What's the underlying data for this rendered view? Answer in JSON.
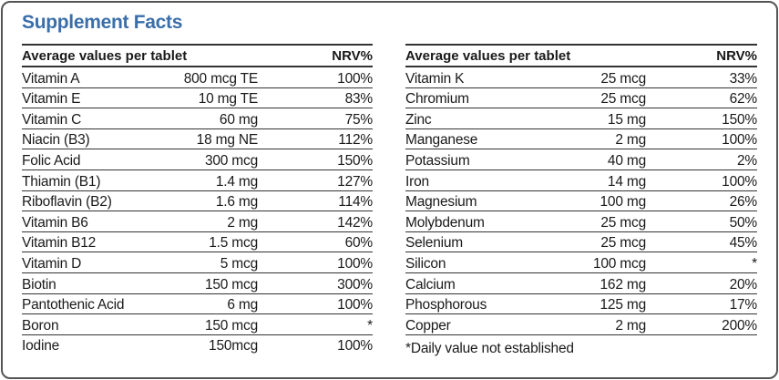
{
  "title": "Supplement Facts",
  "left": {
    "header_label": "Average values per tablet",
    "header_nrv": "NRV%",
    "rows": [
      {
        "name": "Vitamin A",
        "amount": "800 mcg TE",
        "nrv": "100%"
      },
      {
        "name": "Vitamin E",
        "amount": "10 mg TE",
        "nrv": "83%"
      },
      {
        "name": "Vitamin C",
        "amount": "60 mg",
        "nrv": "75%"
      },
      {
        "name": "Niacin (B3)",
        "amount": "18 mg NE",
        "nrv": "112%"
      },
      {
        "name": "Folic Acid",
        "amount": "300 mcg",
        "nrv": "150%"
      },
      {
        "name": "Thiamin (B1)",
        "amount": "1.4 mg",
        "nrv": "127%"
      },
      {
        "name": "Riboflavin (B2)",
        "amount": "1.6 mg",
        "nrv": "114%"
      },
      {
        "name": "Vitamin B6",
        "amount": "2 mg",
        "nrv": "142%"
      },
      {
        "name": "Vitamin B12",
        "amount": "1.5 mcg",
        "nrv": "60%"
      },
      {
        "name": "Vitamin D",
        "amount": "5 mcg",
        "nrv": "100%"
      },
      {
        "name": "Biotin",
        "amount": "150 mcg",
        "nrv": "300%"
      },
      {
        "name": "Pantothenic Acid",
        "amount": "6 mg",
        "nrv": "100%"
      },
      {
        "name": "Boron",
        "amount": "150 mcg",
        "nrv": "*"
      },
      {
        "name": "Iodine",
        "amount": "150mcg",
        "nrv": "100%"
      }
    ]
  },
  "right": {
    "header_label": "Average values per tablet",
    "header_nrv": "NRV%",
    "rows": [
      {
        "name": "Vitamin K",
        "amount": "25 mcg",
        "nrv": "33%"
      },
      {
        "name": "Chromium",
        "amount": "25 mcg",
        "nrv": "62%"
      },
      {
        "name": "Zinc",
        "amount": "15 mg",
        "nrv": "150%"
      },
      {
        "name": "Manganese",
        "amount": "2 mg",
        "nrv": "100%"
      },
      {
        "name": "Potassium",
        "amount": "40 mg",
        "nrv": "2%"
      },
      {
        "name": "Iron",
        "amount": "14 mg",
        "nrv": "100%"
      },
      {
        "name": "Magnesium",
        "amount": "100 mg",
        "nrv": "26%"
      },
      {
        "name": "Molybdenum",
        "amount": "25 mcg",
        "nrv": "50%"
      },
      {
        "name": "Selenium",
        "amount": "25 mcg",
        "nrv": "45%"
      },
      {
        "name": "Silicon",
        "amount": "100 mcg",
        "nrv": "*"
      },
      {
        "name": "Calcium",
        "amount": "162 mg",
        "nrv": "20%"
      },
      {
        "name": "Phosphorous",
        "amount": "125 mg",
        "nrv": "17%"
      },
      {
        "name": "Copper",
        "amount": "2 mg",
        "nrv": "200%"
      }
    ],
    "footnote": "*Daily value not established"
  },
  "colors": {
    "title": "#3a6ea8",
    "border": "#555555",
    "text": "#1a1a1a"
  }
}
